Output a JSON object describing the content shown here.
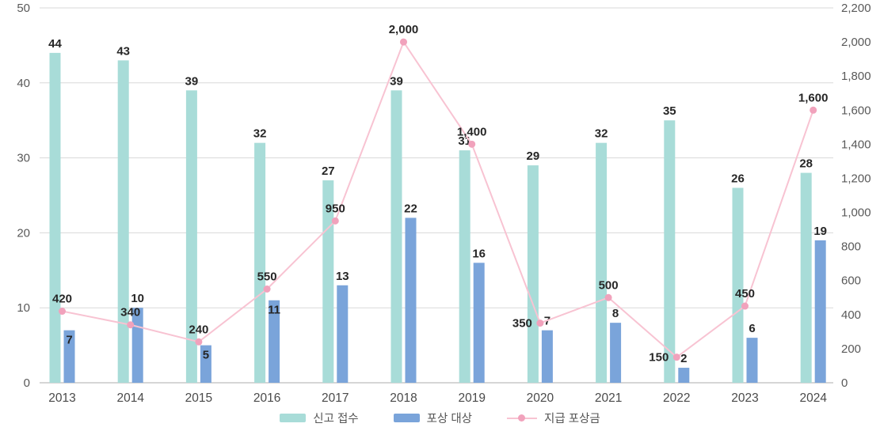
{
  "chart_data": {
    "type": "combo-bar-line",
    "categories": [
      "2013",
      "2014",
      "2015",
      "2016",
      "2017",
      "2018",
      "2019",
      "2020",
      "2021",
      "2022",
      "2023",
      "2024"
    ],
    "series": [
      {
        "name": "신고 접수",
        "type": "bar",
        "axis": "left",
        "color": "#a8dcd8",
        "values": [
          44,
          43,
          39,
          32,
          27,
          39,
          31,
          29,
          32,
          35,
          26,
          28
        ]
      },
      {
        "name": "포상 대상",
        "type": "bar",
        "axis": "left",
        "color": "#7aa4da",
        "values": [
          7,
          10,
          5,
          11,
          13,
          22,
          16,
          7,
          8,
          2,
          6,
          19
        ]
      },
      {
        "name": "지급 포상금",
        "type": "line",
        "axis": "right",
        "color": "#f8c3d2",
        "marker_color": "#f1a2bc",
        "values": [
          420,
          340,
          240,
          550,
          950,
          2000,
          1400,
          350,
          500,
          150,
          450,
          1600
        ]
      }
    ],
    "value_labels": {
      "bar1": [
        "44",
        "43",
        "39",
        "32",
        "27",
        "39",
        "31",
        "29",
        "32",
        "35",
        "26",
        "28"
      ],
      "bar2": [
        "7",
        "10",
        "5",
        "11",
        "13",
        "22",
        "16",
        "7",
        "8",
        "2",
        "6",
        "19"
      ],
      "line": [
        "420",
        "340",
        "240",
        "550",
        "950",
        "2,000",
        "1,400",
        "350",
        "500",
        "150",
        "450",
        "1,600"
      ]
    },
    "left_axis": {
      "min": 0,
      "max": 50,
      "step": 10,
      "ticks": [
        "0",
        "10",
        "20",
        "30",
        "40",
        "50"
      ]
    },
    "right_axis": {
      "min": 0,
      "max": 2200,
      "step": 200,
      "ticks": [
        "0",
        "200",
        "400",
        "600",
        "800",
        "1,000",
        "1,200",
        "1,400",
        "1,600",
        "1,800",
        "2,000",
        "2,200"
      ]
    },
    "grid": true,
    "legend_position": "bottom",
    "label_hints": {
      "line_label_left_indices": [
        7,
        9
      ],
      "bar2_label_inside_indices": [
        0,
        2,
        3
      ]
    },
    "style_colors": {
      "grid_line": "#d9d9d9",
      "baseline": "#bdbdbd",
      "axis_tick_text": "#595959",
      "x_label_text": "#4a4a4a",
      "value_label_text": "#262626"
    }
  }
}
